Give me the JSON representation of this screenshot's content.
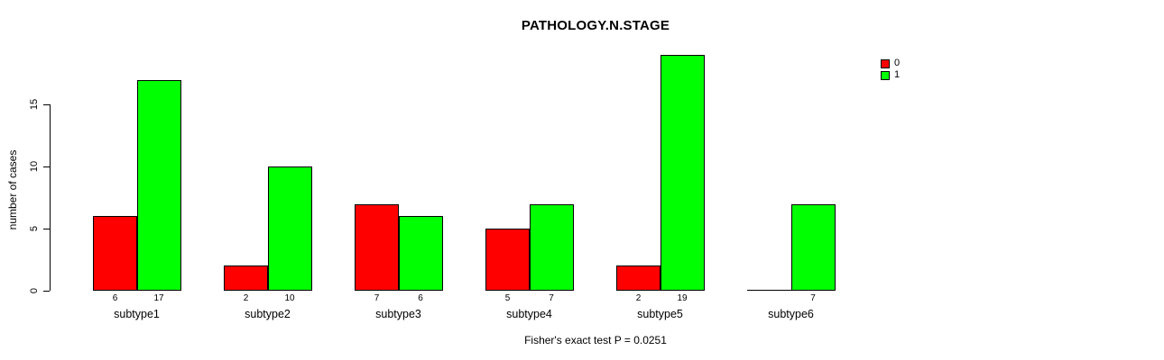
{
  "chart_data": {
    "type": "bar",
    "title": "PATHOLOGY.N.STAGE",
    "ylabel": "number of cases",
    "xlabel": "Fisher's exact test P = 0.0251",
    "categories": [
      "subtype1",
      "subtype2",
      "subtype3",
      "subtype4",
      "subtype5",
      "subtype6"
    ],
    "series": [
      {
        "name": "0",
        "color": "#FF0000",
        "values": [
          6,
          2,
          7,
          5,
          2,
          0
        ],
        "count_labels": [
          "6",
          "2",
          "7",
          "5",
          "2",
          ""
        ]
      },
      {
        "name": "1",
        "color": "#00FF00",
        "values": [
          17,
          10,
          6,
          7,
          19,
          7
        ],
        "count_labels": [
          "17",
          "10",
          "6",
          "7",
          "19",
          "7"
        ]
      }
    ],
    "yticks": [
      0,
      5,
      10,
      15
    ],
    "ylim": [
      0,
      19
    ],
    "grid": false,
    "legend_position": "top-right",
    "axis_color": "#000000",
    "background_color": "#FFFFFF"
  }
}
